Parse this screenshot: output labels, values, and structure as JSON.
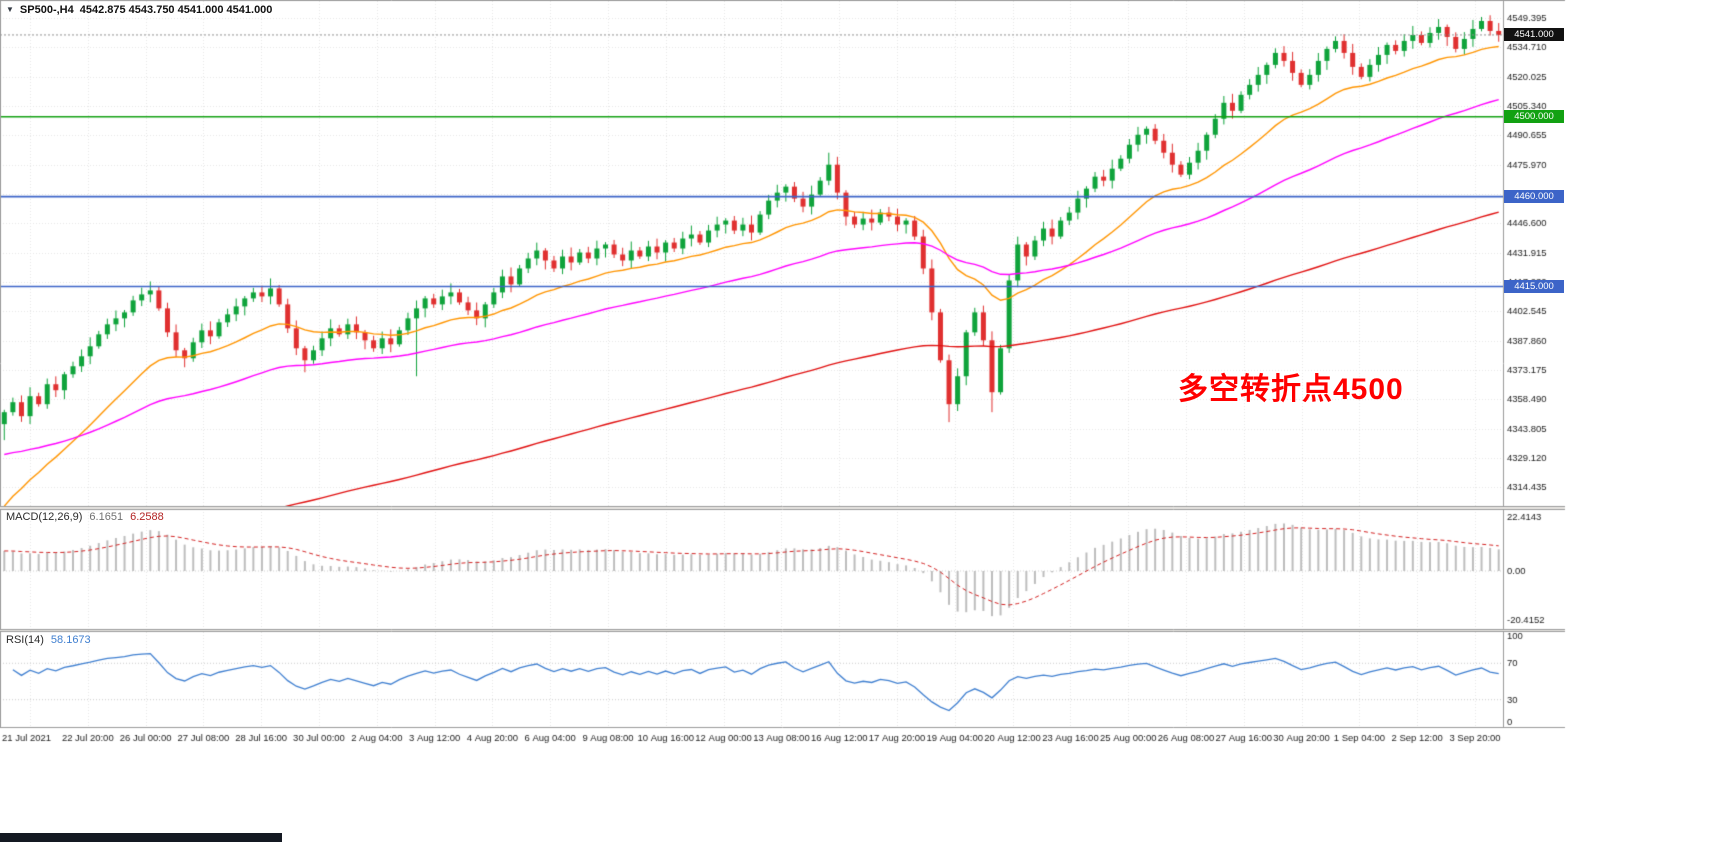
{
  "header": {
    "symbol": "SP500-,H4",
    "ohlc": "4542.875 4543.750 4541.000 4541.000"
  },
  "colors": {
    "candle_up": "#0FA33B",
    "candle_down": "#E03030",
    "macd_hist": "#BDBDBD",
    "macd_signal": "#D22020",
    "rsi_line": "#3F7FD0",
    "grid": "#E6E6E6",
    "border": "#9A9A9A",
    "axis_text": "#1A1A1A",
    "hline_green": "#12A112",
    "hline_blue": "#3C64C8",
    "badge_current_bg": "#111111",
    "annotation_red": "#FF0000",
    "bottom_bar": "#141922"
  },
  "chart_data": {
    "type": "candlestick",
    "symbol": "SP500-",
    "timeframe": "H4",
    "ohlc_display": {
      "open": "4542.875",
      "high": "4543.750",
      "low": "4541.000",
      "close": "4541.000"
    },
    "price_axis": {
      "top": 4549.395,
      "step": 14.685,
      "count": 17,
      "current_value": 4541.0,
      "current_label": "4541.000"
    },
    "hlines": [
      {
        "label": "4500.000",
        "value": 4500,
        "color": "#12A112"
      },
      {
        "label": "4460.000",
        "value": 4460,
        "color": "#3C64C8"
      },
      {
        "label": "4415.000",
        "value": 4415,
        "color": "#3C64C8"
      }
    ],
    "time_axis": [
      "21 Jul 2021",
      "22 Jul 20:00",
      "26 Jul 00:00",
      "27 Jul 08:00",
      "28 Jul 16:00",
      "30 Jul 00:00",
      "2 Aug 04:00",
      "3 Aug 12:00",
      "4 Aug 20:00",
      "6 Aug 04:00",
      "9 Aug 08:00",
      "10 Aug 16:00",
      "12 Aug 00:00",
      "13 Aug 08:00",
      "16 Aug 12:00",
      "17 Aug 20:00",
      "19 Aug 04:00",
      "20 Aug 12:00",
      "23 Aug 16:00",
      "25 Aug 00:00",
      "26 Aug 08:00",
      "27 Aug 16:00",
      "30 Aug 20:00",
      "1 Sep 04:00",
      "2 Sep 12:00",
      "3 Sep 20:00"
    ],
    "candles": {
      "first_open": 4346,
      "closes": [
        4352,
        4357,
        4350,
        4360,
        4356,
        4366,
        4363,
        4371,
        4375,
        4380,
        4385,
        4391,
        4396,
        4399,
        4402,
        4408,
        4411,
        4413,
        4404,
        4392,
        4383,
        4379,
        4387,
        4393,
        4390,
        4397,
        4401,
        4405,
        4409,
        4412,
        4410,
        4414,
        4406,
        4394,
        4384,
        4378,
        4383,
        4389,
        4394,
        4391,
        4396,
        4392,
        4388,
        4384,
        4389,
        4386,
        4393,
        4399,
        4404,
        4409,
        4406,
        4410,
        4412,
        4407,
        4403,
        4399,
        4406,
        4412,
        4420,
        4416,
        4424,
        4429,
        4433,
        4428,
        4424,
        4430,
        4427,
        4432,
        4429,
        4434,
        4436,
        4431,
        4428,
        4433,
        4430,
        4435,
        4432,
        4437,
        4434,
        4439,
        4441,
        4437,
        4443,
        4446,
        4448,
        4443,
        4446,
        4442,
        4451,
        4458,
        4462,
        4465,
        4459,
        4455,
        4461,
        4468,
        4476,
        4462,
        4450,
        4446,
        4449,
        4447,
        4452,
        4450,
        4446,
        4448,
        4440,
        4424,
        4402,
        4378,
        4356,
        4370,
        4392,
        4402,
        4388,
        4362,
        4384,
        4418,
        4436,
        4430,
        4438,
        4444,
        4440,
        4448,
        4452,
        4459,
        4464,
        4470,
        4468,
        4474,
        4479,
        4486,
        4491,
        4494,
        4488,
        4482,
        4476,
        4471,
        4477,
        4483,
        4491,
        4499,
        4507,
        4503,
        4511,
        4516,
        4521,
        4526,
        4532,
        4528,
        4522,
        4516,
        4521,
        4528,
        4534,
        4538,
        4532,
        4525,
        4520,
        4526,
        4531,
        4536,
        4533,
        4538,
        4541,
        4537,
        4542,
        4545,
        4540,
        4534,
        4539,
        4544,
        4548,
        4543,
        4541
      ],
      "wick_overrides": {
        "0": {
          "low": 4338
        },
        "31": {
          "high": 4419
        },
        "35": {
          "low": 4372
        },
        "48": {
          "low": 4370
        },
        "96": {
          "high": 4482
        },
        "110": {
          "low": 4347
        },
        "115": {
          "low": 4352
        },
        "172": {
          "high": 4550
        }
      }
    },
    "moving_averages": [
      {
        "name": "ma-fast",
        "color": "#FF9500",
        "period": 20,
        "start": 4300
      },
      {
        "name": "ma-medium",
        "color": "#FF00FF",
        "period": 55,
        "start": 4330
      },
      {
        "name": "ma-slow",
        "color": "#E01010",
        "period": 150,
        "start": 4256
      }
    ],
    "macd": {
      "label": "MACD(12,26,9)",
      "main": "6.1651",
      "signal": "6.2588",
      "params": [
        12,
        26,
        9
      ],
      "axis": [
        {
          "label": "22.4143",
          "value": 22.4143
        },
        {
          "label": "0.00",
          "value": 0
        },
        {
          "label": "-20.4152",
          "value": -20.4152
        }
      ]
    },
    "rsi": {
      "label": "RSI(14)",
      "value": "58.1673",
      "period": 14,
      "levels": [
        70,
        30
      ],
      "axis": [
        {
          "label": "100",
          "value": 100
        },
        {
          "label": "70",
          "value": 70
        },
        {
          "label": "30",
          "value": 30
        },
        {
          "label": "0",
          "value": 0
        }
      ]
    },
    "annotation": {
      "text": "多空转折点4500",
      "color": "#FF0000"
    }
  }
}
